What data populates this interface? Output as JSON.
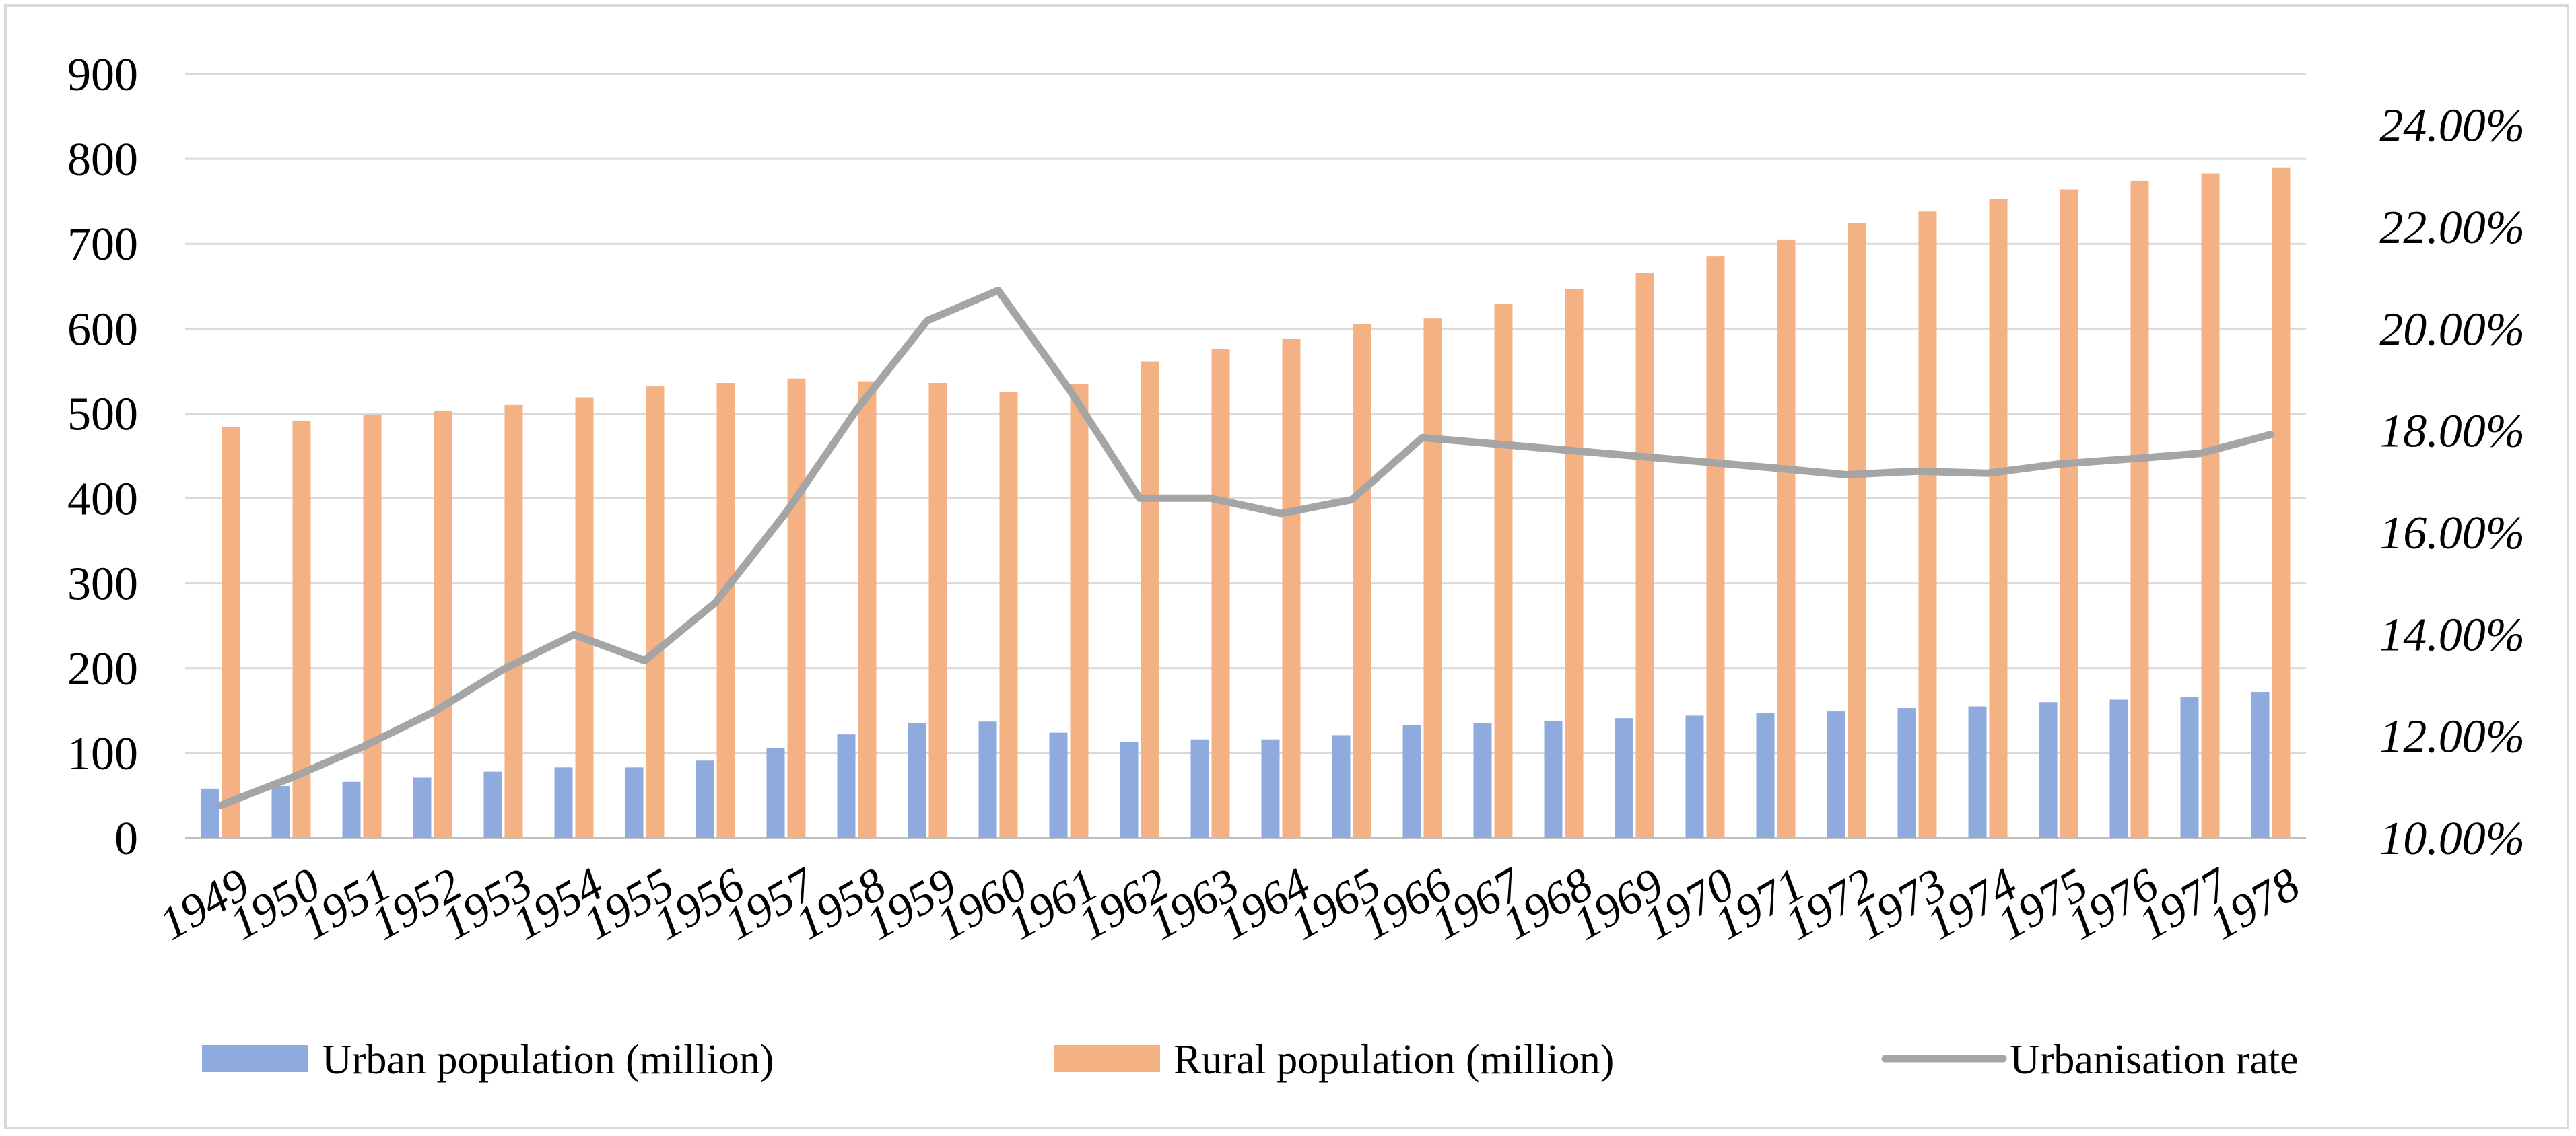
{
  "chart_data": {
    "type": "bar",
    "categories": [
      "1949",
      "1950",
      "1951",
      "1952",
      "1953",
      "1954",
      "1955",
      "1956",
      "1957",
      "1958",
      "1959",
      "1960",
      "1961",
      "1962",
      "1963",
      "1964",
      "1965",
      "1966",
      "1967",
      "1968",
      "1969",
      "1970",
      "1971",
      "1972",
      "1973",
      "1974",
      "1975",
      "1976",
      "1977",
      "1978"
    ],
    "series": [
      {
        "name": "Urban population (million)",
        "type": "bar",
        "axis": "left",
        "color": "#8faadc",
        "values": [
          58,
          61,
          66,
          71,
          78,
          83,
          83,
          91,
          106,
          122,
          135,
          137,
          124,
          113,
          116,
          116,
          121,
          133,
          135,
          138,
          141,
          144,
          147,
          149,
          153,
          155,
          160,
          163,
          166,
          172
        ]
      },
      {
        "name": "Rural population (million)",
        "type": "bar",
        "axis": "left",
        "color": "#f4b183",
        "values": [
          484,
          491,
          498,
          503,
          510,
          519,
          532,
          536,
          541,
          538,
          536,
          525,
          535,
          561,
          576,
          588,
          605,
          612,
          629,
          647,
          666,
          685,
          705,
          724,
          738,
          753,
          764,
          774,
          783,
          790
        ]
      },
      {
        "name": "Urbanisation rate",
        "type": "line",
        "axis": "right",
        "color": "#a5a5a5",
        "values": [
          0.1064,
          0.1118,
          0.1178,
          0.1246,
          0.1331,
          0.1399,
          0.1348,
          0.1462,
          0.1639,
          0.1841,
          0.2016,
          0.2075,
          0.1882,
          0.1667,
          0.1667,
          0.1637,
          0.1664,
          0.1786,
          0.1774,
          0.1762,
          0.175,
          0.1738,
          0.1726,
          0.1713,
          0.172,
          0.1716,
          0.1734,
          0.1744,
          0.1755,
          0.1792
        ]
      }
    ],
    "left_axis": {
      "ylim": [
        0,
        900
      ],
      "ticks": [
        "0",
        "100",
        "200",
        "300",
        "400",
        "500",
        "600",
        "700",
        "800",
        "900"
      ]
    },
    "right_axis": {
      "ylim": [
        0.1,
        0.25
      ],
      "ticks": [
        "10.00%",
        "12.00%",
        "14.00%",
        "16.00%",
        "18.00%",
        "20.00%",
        "22.00%",
        "24.00%"
      ]
    },
    "grid": "horizontal",
    "legend_position": "bottom",
    "legend": [
      "Urban population (million)",
      "Rural population (million)",
      "Urbanisation rate"
    ],
    "title": "",
    "xlabel": "",
    "ylabel": ""
  }
}
